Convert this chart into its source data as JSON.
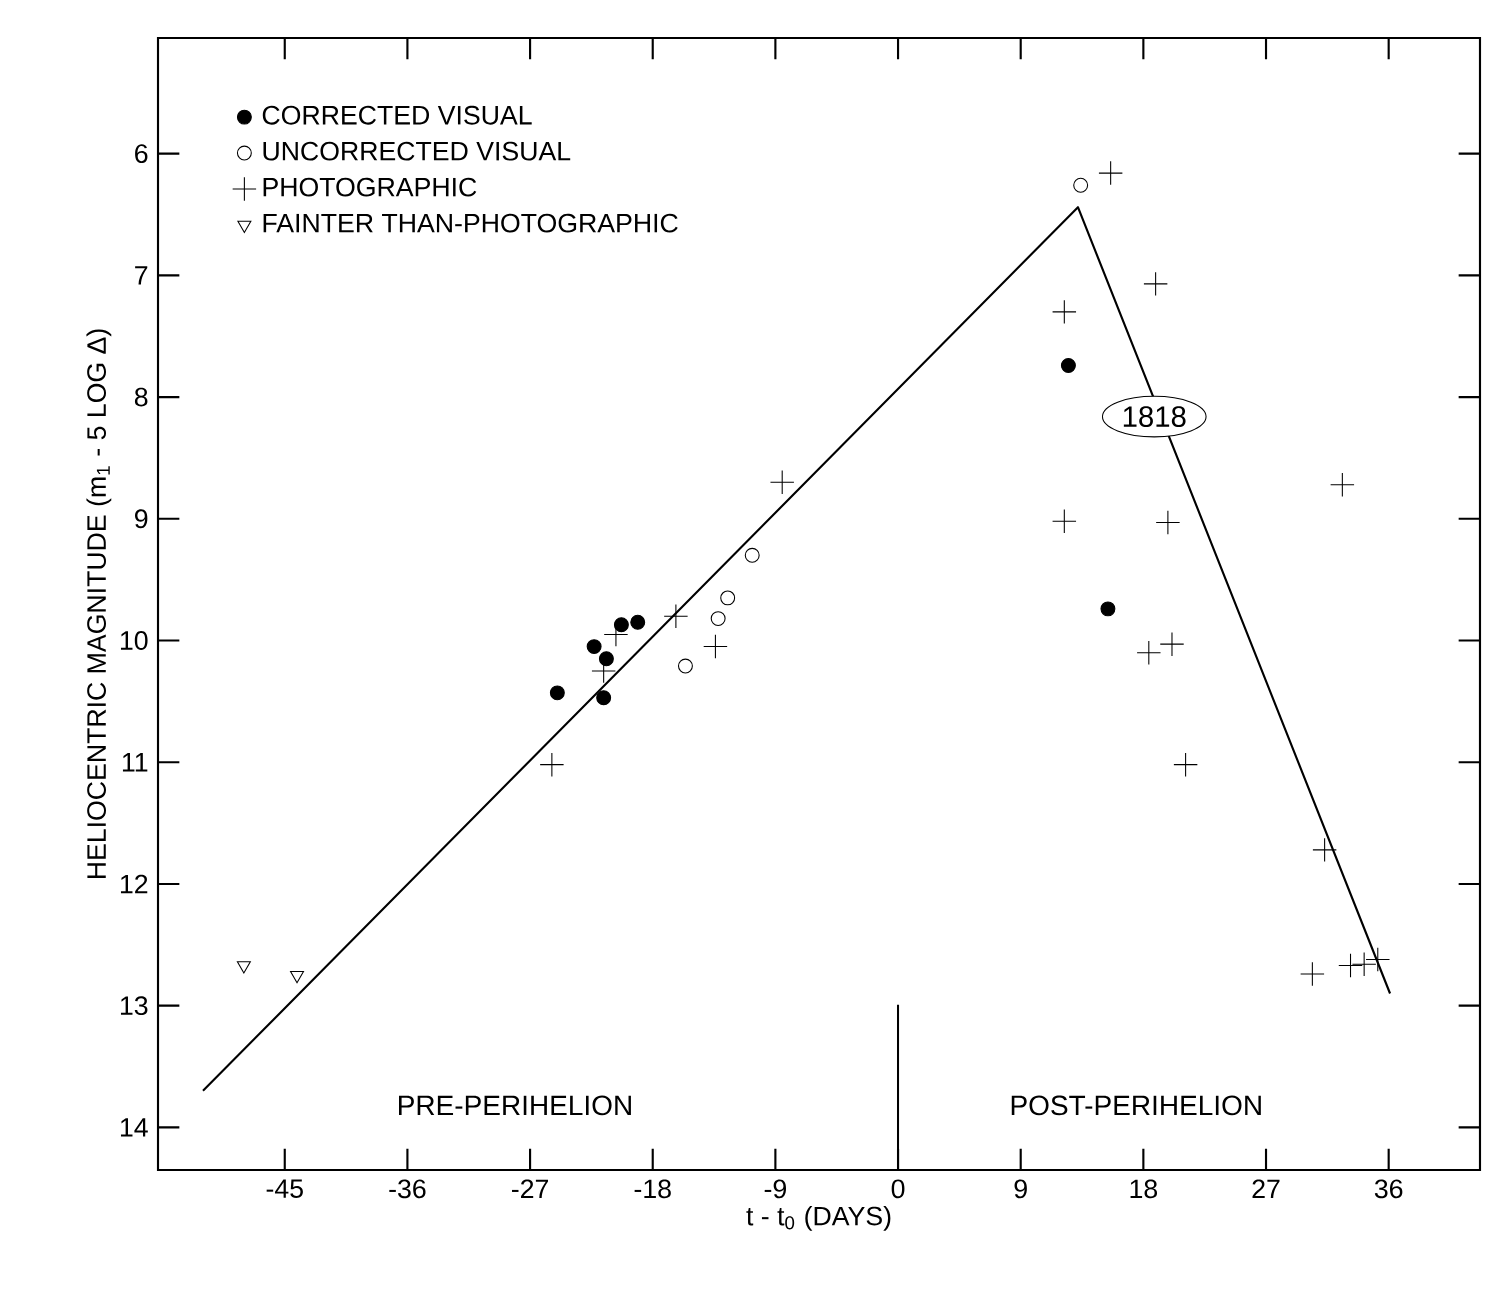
{
  "chart_data": {
    "type": "scatter",
    "xlabel": "t - t$_{0}$ (DAYS)",
    "ylabel": "HELIOCENTRIC MAGNITUDE (m$_{1}$ - 5 LOG Δ)",
    "xlim": [
      -54.3,
      42.7
    ],
    "ylim": [
      14.35,
      5.05
    ],
    "xticks": [
      -45,
      -36,
      -27,
      -18,
      -9,
      0,
      9,
      18,
      27,
      36
    ],
    "yticks": [
      6,
      7,
      8,
      9,
      10,
      11,
      12,
      13,
      14
    ],
    "grid": false,
    "legend": "top left",
    "series": [
      {
        "name": "CORRECTED VISUAL",
        "color": "#000000",
        "marker": "circle",
        "x": [
          -25.0,
          -22.3,
          -21.4,
          -21.6,
          -20.3,
          -19.1,
          12.5,
          15.4
        ],
        "values": [
          10.43,
          10.05,
          10.15,
          10.47,
          9.87,
          9.85,
          7.74,
          9.74
        ]
      },
      {
        "name": "UNCORRECTED VISUAL",
        "color": "#ffffff",
        "marker": "circle",
        "x": [
          -15.6,
          -13.2,
          -12.5,
          -10.7,
          13.4
        ],
        "values": [
          10.21,
          9.82,
          9.65,
          9.3,
          6.26
        ]
      },
      {
        "name": "PHOTOGRAPHIC",
        "color": "#000000",
        "marker": "cross",
        "x": [
          -25.4,
          -21.6,
          -20.7,
          -16.3,
          -13.4,
          -8.5,
          12.2,
          12.2,
          15.6,
          18.9,
          18.4,
          19.8,
          20.1,
          21.1,
          31.3,
          30.4,
          32.6,
          33.2,
          34.2,
          35.2
        ],
        "values": [
          11.02,
          10.25,
          9.95,
          9.8,
          10.05,
          8.7,
          7.3,
          9.02,
          6.16,
          7.07,
          10.1,
          9.03,
          10.03,
          11.02,
          11.72,
          12.74,
          8.72,
          12.67,
          12.66,
          12.62
        ]
      },
      {
        "name": "FAINTER THAN-PHOTOGRAPHIC",
        "color": "#000000",
        "marker": "triangle",
        "x": [
          -48.0,
          -44.1
        ],
        "values": [
          12.67,
          12.75
        ]
      },
      {
        "type": "line",
        "color": "#000000",
        "marker": "none",
        "line_style": "solid",
        "x": [
          -51.0,
          13.2,
          36.1
        ],
        "values": [
          13.7,
          6.44,
          12.9
        ]
      }
    ],
    "ref_lines": [
      {
        "axis": "x",
        "value": 0
      }
    ],
    "annotations": [
      {
        "text": "1818",
        "x": 18.8,
        "y": 8.16
      },
      "PRE-PERIHELION",
      "POST-PERIHELION"
    ]
  }
}
